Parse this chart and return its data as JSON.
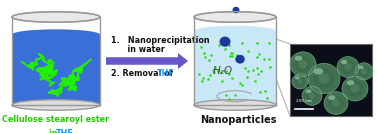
{
  "bg_color": "#ffffff",
  "liquid_blue": "#3a6fd8",
  "liquid_light_blue": "#c8e8f8",
  "green_chain": "#22ee00",
  "arrow_color": "#6655cc",
  "arrow_color2": "#8877ee",
  "text_THF_color": "#1199ff",
  "label_left_color": "#22cc00",
  "label_right_color": "#111111",
  "h2o_label": "H₂O",
  "nanoparticle_color": "#1a3a9a",
  "dot_color": "#22dd00",
  "em_bg": "#0a0e18",
  "sphere_face": "#2a4a3a",
  "sphere_edge": "#55aa66",
  "sphere_highlight": "#88ddaa",
  "beaker_edge": "#999999",
  "beaker_fill": "#f0f0f0",
  "beaker_fill_alpha": 0.15,
  "swirl_color": "#aaaaaa",
  "connector_color": "#aaaaaa",
  "step1_text": "1.   Nanoprecipitation",
  "step1b_text": "      in water",
  "step2_pre": "2. Removal of ",
  "step2_thf": "THF",
  "label_left1": "Cellulose stearoyl ester",
  "label_left2_pre": "in ",
  "label_left2_thf": "THF",
  "label_right": "Nanoparticles"
}
